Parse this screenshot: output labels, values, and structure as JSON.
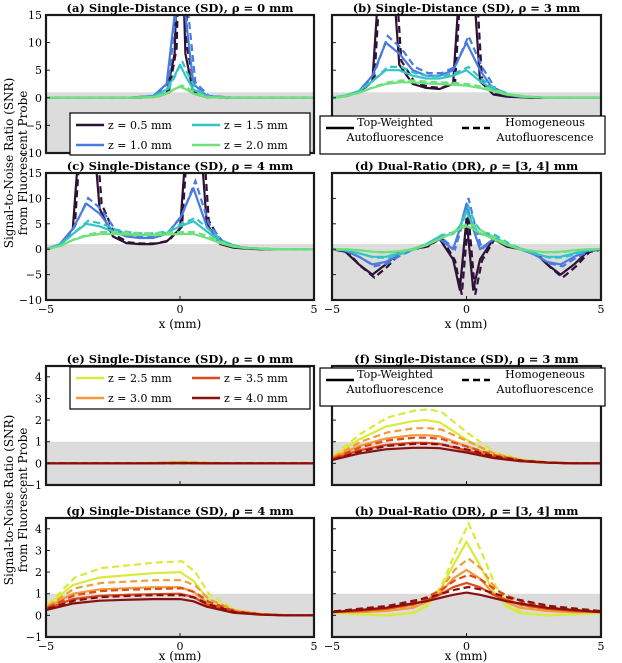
{
  "shared": {
    "ylabel_line1": "Signal-to-Noise Ratio (SNR)",
    "ylabel_line2": "from Fluorescent Probe",
    "xlabel": "x (mm)",
    "legend_top_weighted": [
      "Top-Weighted",
      "Autofluorescence"
    ],
    "legend_homogeneous": [
      "Homogeneous",
      "Autofluorescence"
    ],
    "shade_color": "#dcdcdc"
  },
  "groups": [
    {
      "series_legend": [
        {
          "label": "z = 0.5 mm",
          "color": "#2d1236"
        },
        {
          "label": "z = 1.5 mm",
          "color": "#33c5c5"
        },
        {
          "label": "z = 1.0 mm",
          "color": "#4a7be0"
        },
        {
          "label": "z = 2.0 mm",
          "color": "#6fe07a"
        }
      ]
    },
    {
      "series_legend": [
        {
          "label": "z = 2.5 mm",
          "color": "#d9ea3a"
        },
        {
          "label": "z = 3.5 mm",
          "color": "#e04a17"
        },
        {
          "label": "z = 3.0 mm",
          "color": "#f49a3a"
        },
        {
          "label": "z = 4.0 mm",
          "color": "#8a0f0f"
        }
      ]
    }
  ],
  "chart_data": [
    {
      "id": "a",
      "type": "line",
      "title": "(a) Single-Distance (SD), ρ = 0 mm",
      "xlim": [
        -5,
        5
      ],
      "ylim": [
        -10,
        15
      ],
      "xticks": [
        -5,
        0,
        5
      ],
      "yticks": [
        -10,
        -5,
        0,
        5,
        10,
        15
      ],
      "shade": [
        -10,
        1
      ],
      "x": [
        -5,
        -4,
        -3,
        -2,
        -1,
        -0.5,
        -0.2,
        0,
        0.2,
        0.5,
        1,
        2,
        3,
        4,
        5
      ],
      "series": [
        {
          "name": "z = 0.5 mm",
          "values": [
            0,
            0,
            0,
            0,
            0.1,
            0.8,
            8,
            40,
            8,
            0.8,
            0.1,
            0,
            0,
            0,
            0
          ]
        },
        {
          "name": "z = 1.0 mm",
          "values": [
            0,
            0,
            0,
            0,
            0.3,
            2.5,
            15,
            30,
            15,
            2.5,
            0.3,
            0,
            0,
            0,
            0
          ]
        },
        {
          "name": "z = 1.5 mm",
          "values": [
            0,
            0,
            0,
            0,
            0.2,
            1.5,
            4,
            6,
            4,
            1.5,
            0.2,
            0,
            0,
            0,
            0
          ]
        },
        {
          "name": "z = 2.0 mm",
          "values": [
            0,
            0,
            0,
            0,
            0.1,
            0.8,
            1.6,
            2,
            1.6,
            0.8,
            0.1,
            0,
            0,
            0,
            0
          ]
        }
      ]
    },
    {
      "id": "b",
      "type": "line",
      "title": "(b) Single-Distance (SD), ρ = 3 mm",
      "xlim": [
        -5,
        5
      ],
      "ylim": [
        -10,
        15
      ],
      "xticks": [
        -5,
        0,
        5
      ],
      "yticks": [
        -10,
        -5,
        0,
        5,
        10,
        15
      ],
      "shade": [
        -10,
        1
      ],
      "x": [
        -5,
        -4.5,
        -4,
        -3.5,
        -3,
        -2.5,
        -2,
        -1.5,
        -1,
        -0.5,
        0,
        0.5,
        1,
        1.5,
        2,
        2.5,
        3,
        3.5,
        4,
        5
      ],
      "series": [
        {
          "name": "z = 0.5 mm",
          "values": [
            0,
            0.3,
            1,
            3,
            40,
            6,
            2.5,
            1.8,
            1.6,
            2.5,
            40,
            3,
            0.6,
            0.2,
            0.1,
            0,
            0,
            0,
            0,
            0
          ]
        },
        {
          "name": "z = 1.0 mm",
          "values": [
            0,
            0.4,
            1.2,
            4,
            10,
            8,
            5,
            4,
            4,
            5,
            10,
            5,
            1.5,
            0.5,
            0.2,
            0.1,
            0,
            0,
            0,
            0
          ]
        },
        {
          "name": "z = 1.5 mm",
          "values": [
            0,
            0.4,
            1.2,
            3,
            5,
            5,
            4,
            3.5,
            3.5,
            4,
            5,
            3,
            1.5,
            0.6,
            0.2,
            0.1,
            0,
            0,
            0,
            0
          ]
        },
        {
          "name": "z = 2.0 mm",
          "values": [
            0,
            0.3,
            0.9,
            1.8,
            2.5,
            2.8,
            2.8,
            2.6,
            2.5,
            2.4,
            2.2,
            1.8,
            1.2,
            0.6,
            0.3,
            0.1,
            0,
            0,
            0,
            0
          ]
        }
      ]
    },
    {
      "id": "c",
      "type": "line",
      "title": "(c) Single-Distance (SD), ρ = 4 mm",
      "xlim": [
        -5,
        5
      ],
      "ylim": [
        -10,
        15
      ],
      "xticks": [
        -5,
        0,
        5
      ],
      "yticks": [
        -10,
        -5,
        0,
        5,
        10,
        15
      ],
      "shade": [
        -10,
        1
      ],
      "x": [
        -5,
        -4.5,
        -4,
        -3.5,
        -3,
        -2.5,
        -2,
        -1.5,
        -1,
        -0.5,
        0,
        0.5,
        1,
        1.5,
        2,
        2.5,
        3,
        3.5,
        4,
        5
      ],
      "series": [
        {
          "name": "z = 0.5 mm",
          "values": [
            0,
            0.8,
            4,
            40,
            8,
            2.5,
            1.2,
            1,
            1,
            1.5,
            4,
            40,
            5,
            1,
            0.3,
            0.1,
            0,
            0,
            0,
            0
          ]
        },
        {
          "name": "z = 1.0 mm",
          "values": [
            0,
            0.9,
            4,
            9,
            7,
            3.5,
            2.5,
            2.2,
            2.2,
            3,
            6,
            12,
            4.5,
            1.5,
            0.5,
            0.2,
            0.1,
            0,
            0,
            0
          ]
        },
        {
          "name": "z = 1.5 mm",
          "values": [
            0,
            0.8,
            3,
            5,
            4.5,
            3.5,
            3,
            2.8,
            2.8,
            3.2,
            4.5,
            5.5,
            3.5,
            1.5,
            0.6,
            0.2,
            0.1,
            0,
            0,
            0
          ]
        },
        {
          "name": "z = 2.0 mm",
          "values": [
            0,
            0.6,
            1.8,
            2.6,
            3,
            3,
            2.9,
            2.8,
            2.8,
            2.9,
            3,
            3,
            2.2,
            1.2,
            0.5,
            0.2,
            0.1,
            0,
            0,
            0
          ]
        }
      ]
    },
    {
      "id": "d",
      "type": "line",
      "title": "(d) Dual-Ratio (DR), ρ = [3, 4] mm",
      "xlim": [
        -5,
        5
      ],
      "ylim": [
        -10,
        15
      ],
      "xticks": [
        -5,
        0,
        5
      ],
      "yticks": [
        -10,
        -5,
        0,
        5,
        10,
        15
      ],
      "shade": [
        -10,
        1
      ],
      "x": [
        -5,
        -4.5,
        -4,
        -3.5,
        -3,
        -2.5,
        -2,
        -1.5,
        -1,
        -0.5,
        -0.25,
        0,
        0.25,
        0.5,
        1,
        1.5,
        2,
        2.5,
        3,
        3.5,
        4,
        4.5,
        5
      ],
      "series": [
        {
          "name": "z = 0.5 mm",
          "values": [
            0,
            -0.5,
            -3,
            -5,
            -3,
            -0.5,
            0,
            0.5,
            2,
            -2,
            -8,
            6,
            -8,
            -2,
            2,
            0.5,
            0,
            -0.5,
            -3,
            -5,
            -3,
            -0.5,
            0
          ]
        },
        {
          "name": "z = 1.0 mm",
          "values": [
            0,
            -0.3,
            -1.5,
            -3,
            -2.5,
            -1,
            0,
            0.8,
            2,
            0,
            4,
            9,
            4,
            0,
            2,
            0.8,
            0,
            -1,
            -2.5,
            -3,
            -1.5,
            -0.3,
            0
          ]
        },
        {
          "name": "z = 1.5 mm",
          "values": [
            0,
            -0.2,
            -0.8,
            -1.5,
            -1.5,
            -0.8,
            0,
            1,
            2.5,
            3,
            4.5,
            7.5,
            4.5,
            3,
            2.5,
            1,
            0,
            -0.8,
            -1.5,
            -1.5,
            -0.8,
            -0.2,
            0
          ]
        },
        {
          "name": "z = 2.0 mm",
          "values": [
            0,
            0,
            -0.2,
            -0.5,
            -0.6,
            -0.4,
            0,
            0.8,
            2,
            3.2,
            4,
            4.5,
            4,
            3.2,
            2,
            0.8,
            0,
            -0.4,
            -0.6,
            -0.5,
            -0.2,
            0,
            0
          ]
        }
      ]
    },
    {
      "id": "e",
      "type": "line",
      "title": "(e) Single-Distance (SD), ρ = 0 mm",
      "xlim": [
        -5,
        5
      ],
      "ylim": [
        -1,
        4.5
      ],
      "xticks": [
        -5,
        0,
        5
      ],
      "yticks": [
        -1,
        0,
        1,
        2,
        3,
        4
      ],
      "shade": [
        -1,
        1
      ],
      "x": [
        -5,
        -2,
        -1,
        0,
        1,
        2,
        5
      ],
      "series": [
        {
          "name": "z = 2.5 mm",
          "values": [
            0,
            0,
            0.02,
            0.06,
            0.02,
            0,
            0
          ]
        },
        {
          "name": "z = 3.0 mm",
          "values": [
            0,
            0,
            0.01,
            0.03,
            0.01,
            0,
            0
          ]
        },
        {
          "name": "z = 3.5 mm",
          "values": [
            0,
            0,
            0.01,
            0.02,
            0.01,
            0,
            0
          ]
        },
        {
          "name": "z = 4.0 mm",
          "values": [
            0,
            0,
            0,
            0.01,
            0,
            0,
            0
          ]
        }
      ]
    },
    {
      "id": "f",
      "type": "line",
      "title": "(f) Single-Distance (SD), ρ = 3 mm",
      "xlim": [
        -5,
        5
      ],
      "ylim": [
        -1,
        4.5
      ],
      "xticks": [
        -5,
        0,
        5
      ],
      "yticks": [
        -1,
        0,
        1,
        2,
        3,
        4
      ],
      "shade": [
        -1,
        1
      ],
      "x": [
        -5,
        -4,
        -3,
        -2,
        -1.5,
        -1,
        0,
        1,
        2,
        3,
        4,
        5
      ],
      "series": [
        {
          "name": "z = 2.5 mm",
          "values": [
            0.3,
            1.1,
            1.7,
            1.95,
            2,
            1.9,
            1.1,
            0.4,
            0.15,
            0.05,
            0,
            0
          ]
        },
        {
          "name": "z = 3.0 mm",
          "values": [
            0.25,
            0.8,
            1.15,
            1.3,
            1.3,
            1.25,
            0.8,
            0.35,
            0.12,
            0.04,
            0,
            0
          ]
        },
        {
          "name": "z = 3.5 mm",
          "values": [
            0.2,
            0.6,
            0.85,
            0.95,
            0.95,
            0.9,
            0.6,
            0.3,
            0.1,
            0.03,
            0,
            0
          ]
        },
        {
          "name": "z = 4.0 mm",
          "values": [
            0.15,
            0.45,
            0.65,
            0.72,
            0.72,
            0.7,
            0.5,
            0.25,
            0.1,
            0.03,
            0,
            0
          ]
        }
      ]
    },
    {
      "id": "g",
      "type": "line",
      "title": "(g) Single-Distance (SD), ρ = 4 mm",
      "xlim": [
        -5,
        5
      ],
      "ylim": [
        -1,
        4.5
      ],
      "xticks": [
        -5,
        0,
        5
      ],
      "yticks": [
        -1,
        0,
        1,
        2,
        3,
        4
      ],
      "shade": [
        -1,
        1
      ],
      "x": [
        -5,
        -4,
        -3,
        -2,
        -1,
        0,
        0.5,
        1,
        2,
        3,
        4,
        5
      ],
      "series": [
        {
          "name": "z = 2.5 mm",
          "values": [
            0.4,
            1.4,
            1.75,
            1.85,
            1.95,
            2,
            1.6,
            0.8,
            0.2,
            0.05,
            0,
            0
          ]
        },
        {
          "name": "z = 3.0 mm",
          "values": [
            0.35,
            1,
            1.2,
            1.25,
            1.3,
            1.3,
            1.1,
            0.6,
            0.18,
            0.05,
            0,
            0
          ]
        },
        {
          "name": "z = 3.5 mm",
          "values": [
            0.3,
            0.75,
            0.9,
            0.95,
            0.98,
            1,
            0.85,
            0.5,
            0.15,
            0.04,
            0,
            0
          ]
        },
        {
          "name": "z = 4.0 mm",
          "values": [
            0.25,
            0.55,
            0.68,
            0.72,
            0.75,
            0.75,
            0.65,
            0.4,
            0.12,
            0.03,
            0,
            0
          ]
        }
      ]
    },
    {
      "id": "h",
      "type": "line",
      "title": "(h) Dual-Ratio (DR), ρ = [3, 4] mm",
      "xlim": [
        -5,
        5
      ],
      "ylim": [
        -1,
        4.5
      ],
      "xticks": [
        -5,
        0,
        5
      ],
      "yticks": [
        -1,
        0,
        1,
        2,
        3,
        4
      ],
      "shade": [
        -1,
        1
      ],
      "x": [
        -5,
        -4,
        -3,
        -2,
        -1.5,
        -1,
        -0.5,
        0,
        0.5,
        1,
        1.5,
        2,
        3,
        4,
        5
      ],
      "series": [
        {
          "name": "z = 2.5 mm",
          "values": [
            0.1,
            0.05,
            0,
            0.1,
            0.4,
            1.1,
            2.3,
            3.4,
            2.3,
            1.1,
            0.4,
            0.1,
            0,
            0.05,
            0.1
          ]
        },
        {
          "name": "z = 3.0 mm",
          "values": [
            0.15,
            0.15,
            0.2,
            0.35,
            0.6,
            1,
            1.7,
            2.1,
            1.7,
            1,
            0.6,
            0.35,
            0.2,
            0.15,
            0.15
          ]
        },
        {
          "name": "z = 3.5 mm",
          "values": [
            0.15,
            0.2,
            0.3,
            0.5,
            0.7,
            0.95,
            1.3,
            1.5,
            1.3,
            0.95,
            0.7,
            0.5,
            0.3,
            0.2,
            0.15
          ]
        },
        {
          "name": "z = 4.0 mm",
          "values": [
            0.15,
            0.25,
            0.35,
            0.55,
            0.65,
            0.8,
            0.95,
            1.05,
            0.95,
            0.8,
            0.65,
            0.55,
            0.35,
            0.25,
            0.15
          ]
        }
      ]
    }
  ]
}
